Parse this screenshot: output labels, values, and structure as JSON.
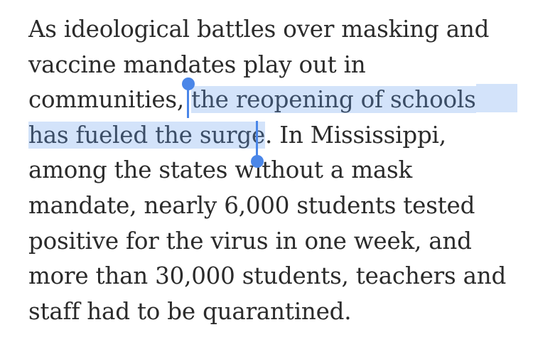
{
  "article": {
    "line1": "As ideological battles over masking and",
    "line2": "vaccine mandates play out in",
    "line3_pre": "communities, ",
    "line3_sel": "the reopening of schools",
    "line4_sel": "has fueled the surge",
    "line4_post": ". In Mississippi,",
    "line5": "among the states without a mask",
    "line6": "mandate, nearly 6,000 students tested",
    "line7": "positive for the virus in one week, and",
    "line8": "more than 30,000 students, teachers and",
    "line9": "staff had to be quarantined."
  },
  "selection": {
    "text": "the reopening of schools has fueled the surge",
    "highlight_color": "#d3e3fa",
    "handle_color": "#4a86e8"
  }
}
